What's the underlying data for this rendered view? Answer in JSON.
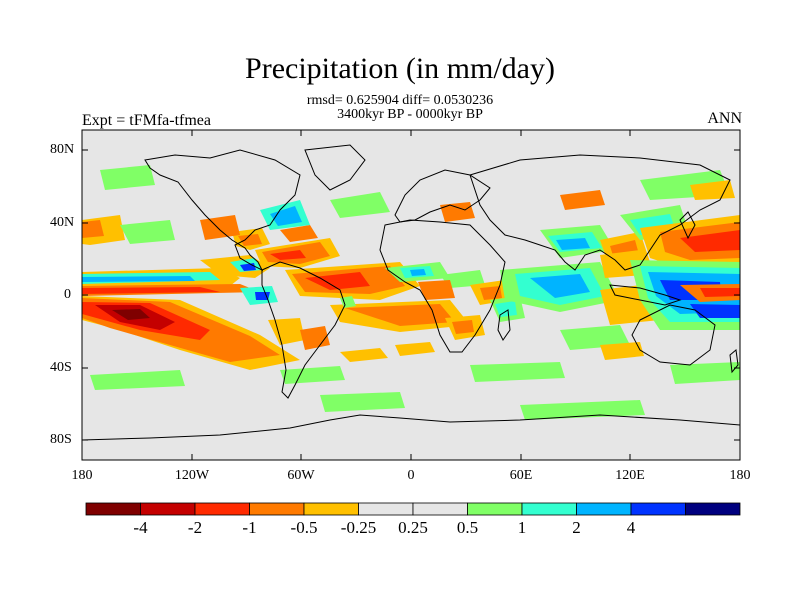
{
  "title": "Precipitation (in mm/day)",
  "stats_line": "rmsd= 0.625904 diff= 0.0530236",
  "period_line": "3400kyr BP - 0000kyr BP",
  "left_label": "Expt = tFMfa-tfmea",
  "right_label": "ANN",
  "lat_labels": [
    "80N",
    "40N",
    "0",
    "40S",
    "80S"
  ],
  "lon_labels": [
    "180",
    "120W",
    "60W",
    "0",
    "60E",
    "120E",
    "180"
  ],
  "colorbar": {
    "colors": [
      "#7f0000",
      "#c40000",
      "#ff2a00",
      "#ff7a00",
      "#ffc000",
      "#e6e6e6",
      "#e6e6e6",
      "#80ff66",
      "#33ffd0",
      "#00b4ff",
      "#0033ff",
      "#00007f"
    ],
    "labels": [
      "-4",
      "-2",
      "-1",
      "-0.5",
      "-0.25",
      "0.25",
      "0.5",
      "1",
      "2",
      "4"
    ]
  },
  "colors": {
    "land_bg": "#e6e6e6",
    "coast": "#000000"
  }
}
